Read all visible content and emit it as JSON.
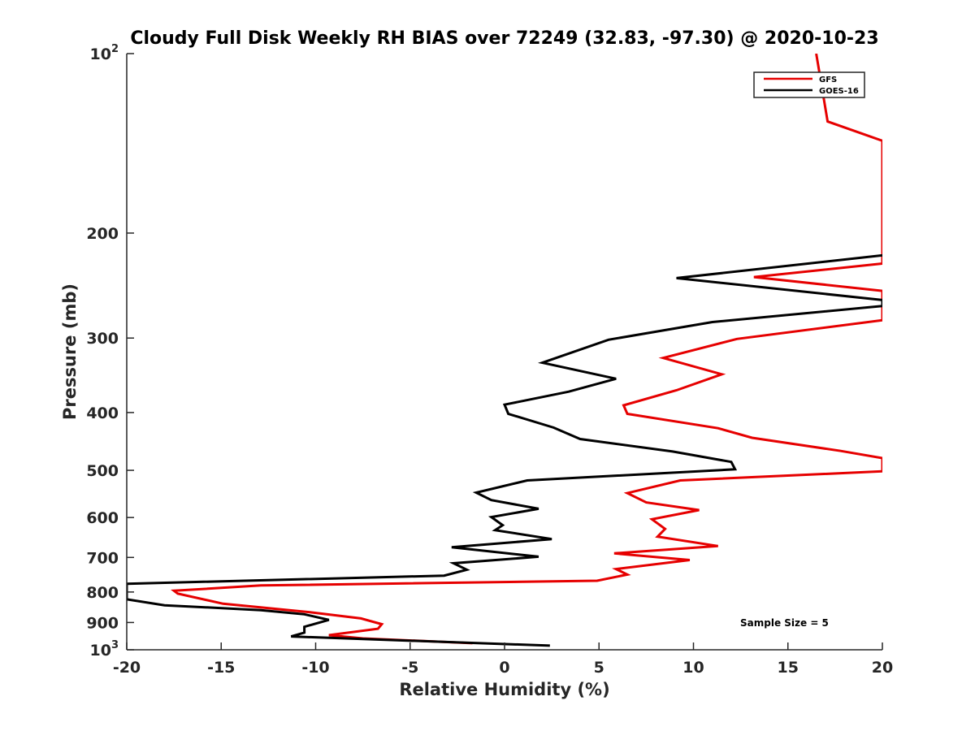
{
  "chart_data": {
    "type": "line",
    "title": "Cloudy Full Disk Weekly RH BIAS over 72249 (32.83, -97.30) @ 2020-10-23",
    "xlabel": "Relative Humidity (%)",
    "ylabel": "Pressure (mb)",
    "xlim": [
      -20,
      20
    ],
    "ylim": [
      1000,
      100
    ],
    "yscale": "log",
    "y_reversed": true,
    "grid": false,
    "legend_position": "top-right",
    "x_ticks": [
      "-20",
      "-15",
      "-10",
      "-5",
      "0",
      "5",
      "10",
      "15",
      "20"
    ],
    "y_ticks": [
      {
        "value": 100,
        "base": "10",
        "exp": "2"
      },
      {
        "value": 200,
        "base": "200",
        "exp": ""
      },
      {
        "value": 300,
        "base": "300",
        "exp": ""
      },
      {
        "value": 400,
        "base": "400",
        "exp": ""
      },
      {
        "value": 500,
        "base": "500",
        "exp": ""
      },
      {
        "value": 600,
        "base": "600",
        "exp": ""
      },
      {
        "value": 700,
        "base": "700",
        "exp": ""
      },
      {
        "value": 800,
        "base": "800",
        "exp": ""
      },
      {
        "value": 900,
        "base": "900",
        "exp": ""
      },
      {
        "value": 1000,
        "base": "10",
        "exp": "3"
      }
    ],
    "annotation": "Sample Size = 5",
    "series": [
      {
        "name": "GFS",
        "color": "#e60000",
        "points": [
          [
            16.5,
            100
          ],
          [
            17.1,
            130
          ],
          [
            20,
            140
          ],
          [
            20,
            225
          ],
          [
            13.2,
            237
          ],
          [
            20,
            250
          ],
          [
            20,
            280
          ],
          [
            12.3,
            301
          ],
          [
            8.4,
            324
          ],
          [
            11.5,
            345
          ],
          [
            9.1,
            367
          ],
          [
            6.3,
            389
          ],
          [
            6.5,
            402
          ],
          [
            11.3,
            425
          ],
          [
            13.1,
            441
          ],
          [
            17.8,
            464
          ],
          [
            20,
            477
          ],
          [
            20,
            502
          ],
          [
            9.3,
            520
          ],
          [
            6.5,
            546
          ],
          [
            7.5,
            566
          ],
          [
            10.3,
            583
          ],
          [
            7.8,
            604
          ],
          [
            8.5,
            627
          ],
          [
            8.1,
            646
          ],
          [
            11.3,
            670
          ],
          [
            5.8,
            689
          ],
          [
            9.8,
            707
          ],
          [
            5.9,
            732
          ],
          [
            6.5,
            748
          ],
          [
            4.9,
            766
          ],
          [
            -12.9,
            780
          ],
          [
            -17.5,
            796
          ],
          [
            -17.3,
            805
          ],
          [
            -14.9,
            837
          ],
          [
            -10.3,
            865
          ],
          [
            -7.6,
            886
          ],
          [
            -6.5,
            906
          ],
          [
            -6.7,
            922
          ],
          [
            -9.3,
            945
          ],
          [
            -7.5,
            957
          ],
          [
            -1.7,
            975
          ]
        ]
      },
      {
        "name": "GOES-16",
        "color": "#000000",
        "points": [
          [
            20,
            218
          ],
          [
            9.1,
            238
          ],
          [
            20,
            259
          ],
          [
            20,
            265
          ],
          [
            11.0,
            282
          ],
          [
            5.5,
            302
          ],
          [
            2.0,
            330
          ],
          [
            5.9,
            351
          ],
          [
            3.4,
            369
          ],
          [
            0.0,
            388
          ],
          [
            0.2,
            402
          ],
          [
            2.6,
            424
          ],
          [
            4.0,
            443
          ],
          [
            8.9,
            465
          ],
          [
            12.0,
            484
          ],
          [
            12.2,
            498
          ],
          [
            1.2,
            520
          ],
          [
            -1.5,
            545
          ],
          [
            -0.7,
            561
          ],
          [
            1.8,
            580
          ],
          [
            -0.7,
            599
          ],
          [
            -0.1,
            618
          ],
          [
            -0.5,
            630
          ],
          [
            2.5,
            652
          ],
          [
            -2.8,
            673
          ],
          [
            1.8,
            698
          ],
          [
            -2.7,
            716
          ],
          [
            -2.0,
            734
          ],
          [
            -3.2,
            751
          ],
          [
            -20,
            775
          ],
          [
            -20,
            823
          ],
          [
            -18.0,
            842
          ],
          [
            -12.9,
            858
          ],
          [
            -10.6,
            872
          ],
          [
            -9.3,
            891
          ],
          [
            -10.6,
            915
          ],
          [
            -10.6,
            936
          ],
          [
            -11.3,
            950
          ],
          [
            2.4,
            984
          ]
        ]
      }
    ]
  }
}
